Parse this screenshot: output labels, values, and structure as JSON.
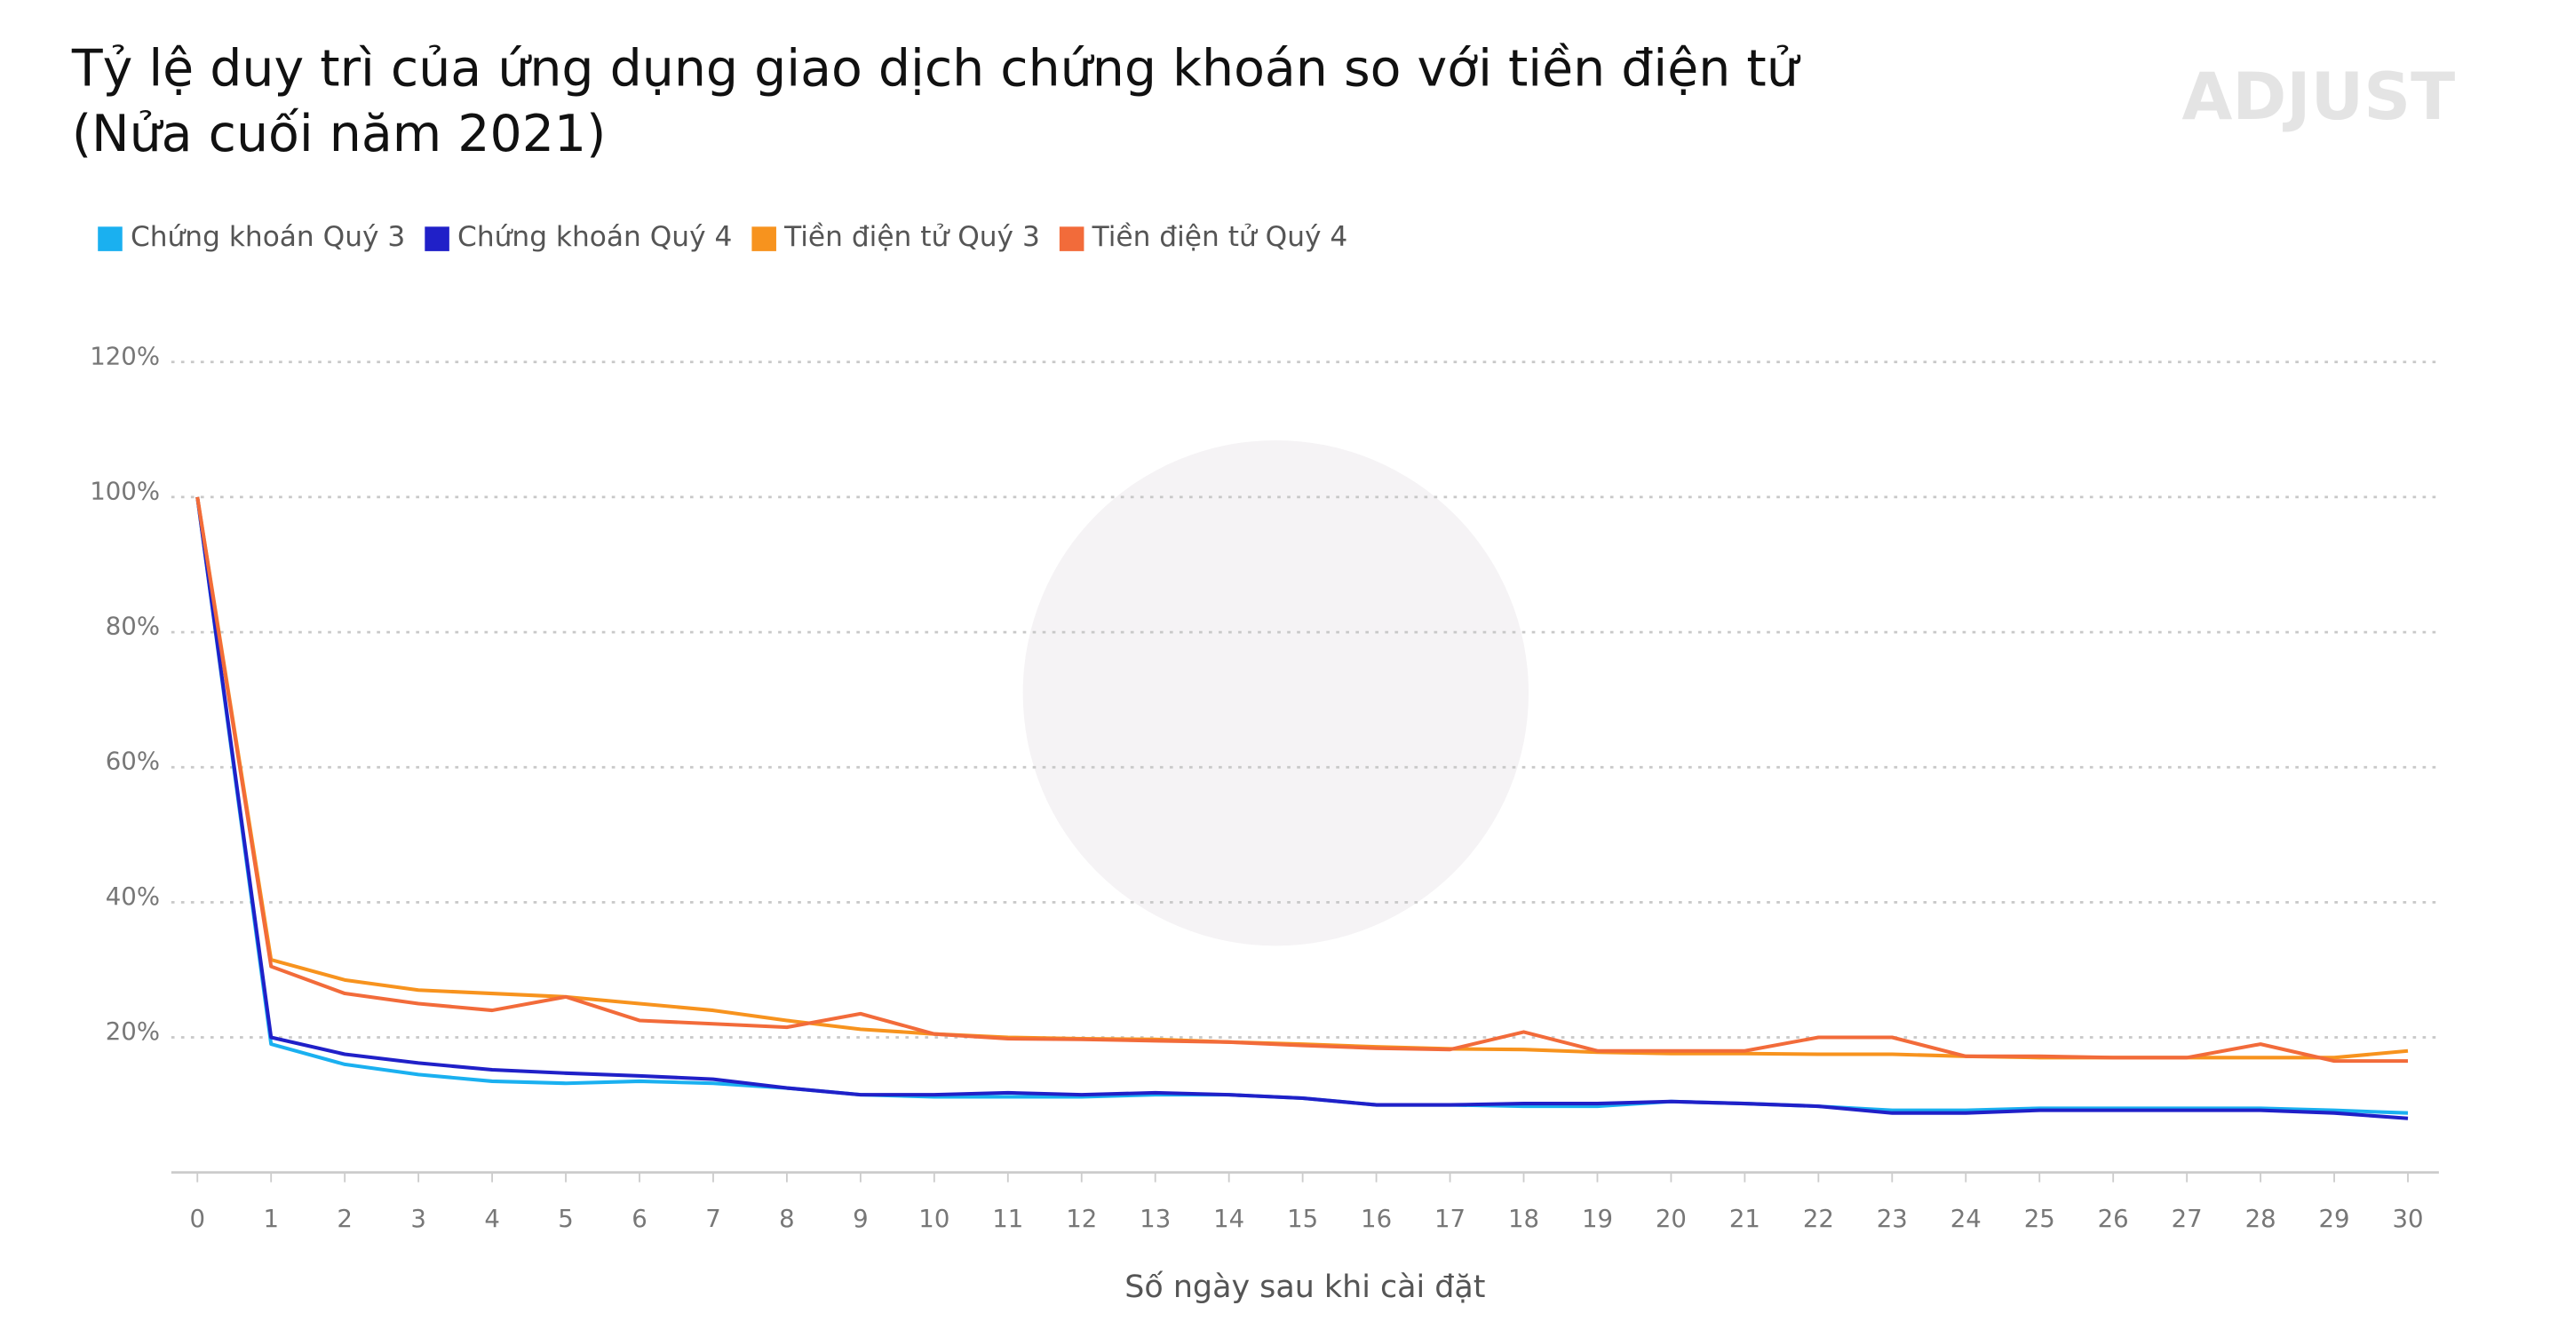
{
  "chart_data": {
    "type": "line",
    "title": "Tỷ lệ duy trì của ứng dụng giao dịch chứng khoán so với tiền điện tử",
    "subtitle": "(Nửa cuối năm 2021)",
    "logo": "ADJUST",
    "x_label": "Số ngày sau khi cài đặt",
    "x": [
      0,
      1,
      2,
      3,
      4,
      5,
      6,
      7,
      8,
      9,
      10,
      11,
      12,
      13,
      14,
      15,
      16,
      17,
      18,
      19,
      20,
      21,
      22,
      23,
      24,
      25,
      26,
      27,
      28,
      29,
      30
    ],
    "xlim": [
      0,
      30
    ],
    "xticks": [
      0,
      1,
      2,
      3,
      4,
      5,
      6,
      7,
      8,
      9,
      10,
      11,
      12,
      13,
      14,
      15,
      16,
      17,
      18,
      19,
      20,
      21,
      22,
      23,
      24,
      25,
      26,
      27,
      28,
      29,
      30
    ],
    "ylim": [
      0,
      120
    ],
    "yticks": [
      {
        "value": 20,
        "label": "20%"
      },
      {
        "value": 40,
        "label": "40%"
      },
      {
        "value": 60,
        "label": "60%"
      },
      {
        "value": 80,
        "label": "80%"
      },
      {
        "value": 100,
        "label": "100%"
      },
      {
        "value": 120,
        "label": "120%"
      }
    ],
    "grid": true,
    "legend": "top-left",
    "series": [
      {
        "name": "Chứng khoán Quý 3",
        "color": "#1ab0f0",
        "values": [
          100,
          19,
          16,
          14.5,
          13.5,
          13.2,
          13.5,
          13.2,
          12.5,
          11.5,
          11.2,
          11.2,
          11.2,
          11.5,
          11.5,
          11,
          10,
          10,
          9.8,
          9.8,
          10.5,
          10.2,
          9.8,
          9.2,
          9.2,
          9.5,
          9.5,
          9.5,
          9.5,
          9.2,
          8.8
        ]
      },
      {
        "name": "Chứng khoán Quý 4",
        "color": "#2020c8",
        "values": [
          100,
          20,
          17.5,
          16.2,
          15.2,
          14.7,
          14.3,
          13.8,
          12.5,
          11.5,
          11.5,
          11.8,
          11.5,
          11.8,
          11.5,
          11,
          10,
          10,
          10.2,
          10.2,
          10.5,
          10.2,
          9.8,
          8.8,
          8.8,
          9.2,
          9.2,
          9.2,
          9.2,
          8.8,
          8
        ]
      },
      {
        "name": "Tiền điện tử Quý 3",
        "color": "#f7931e",
        "values": [
          100,
          31.5,
          28.5,
          27,
          26.5,
          26,
          25,
          24,
          22.5,
          21.2,
          20.5,
          20,
          19.8,
          19.7,
          19.3,
          19,
          18.6,
          18.3,
          18.2,
          17.8,
          17.6,
          17.6,
          17.5,
          17.5,
          17.2,
          17,
          17,
          17,
          17,
          17,
          18
        ]
      },
      {
        "name": "Tiền điện tử Quý 4",
        "color": "#f26b3a",
        "values": [
          100,
          30.5,
          26.5,
          25,
          24,
          26,
          22.5,
          22,
          21.5,
          23.5,
          20.5,
          19.8,
          19.7,
          19.5,
          19.3,
          18.8,
          18.4,
          18.2,
          20.8,
          18,
          18,
          18,
          20,
          20,
          17.2,
          17.2,
          17,
          17,
          19,
          16.5,
          16.5
        ]
      }
    ]
  }
}
